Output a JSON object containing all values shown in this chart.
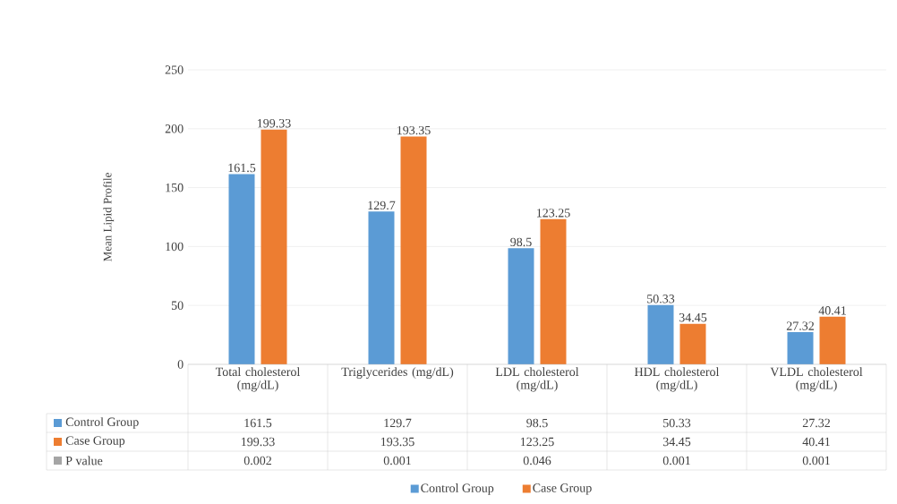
{
  "chart_data": {
    "type": "bar",
    "ylabel": "Mean Lipid Profile",
    "categories": [
      "Total cholesterol (mg/dL)",
      "Triglycerides (mg/dL)",
      "LDL cholesterol (mg/dL)",
      "HDL cholesterol (mg/dL)",
      "VLDL cholesterol (mg/dL)"
    ],
    "series": [
      {
        "name": "Control Group",
        "color": "#5b9bd5",
        "values": [
          161.5,
          129.7,
          98.5,
          50.33,
          27.32
        ],
        "value_labels": [
          "161.5",
          "129.7",
          "98.5",
          "50.33",
          "27.32"
        ]
      },
      {
        "name": "Case Group",
        "color": "#ed7d31",
        "values": [
          199.33,
          193.35,
          123.25,
          34.45,
          40.41
        ],
        "value_labels": [
          "199.33",
          "193.35",
          "123.25",
          "34.45",
          "40.41"
        ]
      },
      {
        "name": "P value",
        "color": "#a5a5a5",
        "values": [
          0.002,
          0.001,
          0.046,
          0.001,
          0.001
        ],
        "value_labels": [
          "0.002",
          "0.001",
          "0.046",
          "0.001",
          "0.001"
        ]
      }
    ],
    "ylim": [
      0,
      250
    ],
    "yticks": [
      0,
      50,
      100,
      150,
      200,
      250
    ],
    "grid": "y",
    "legend": "bottom"
  }
}
